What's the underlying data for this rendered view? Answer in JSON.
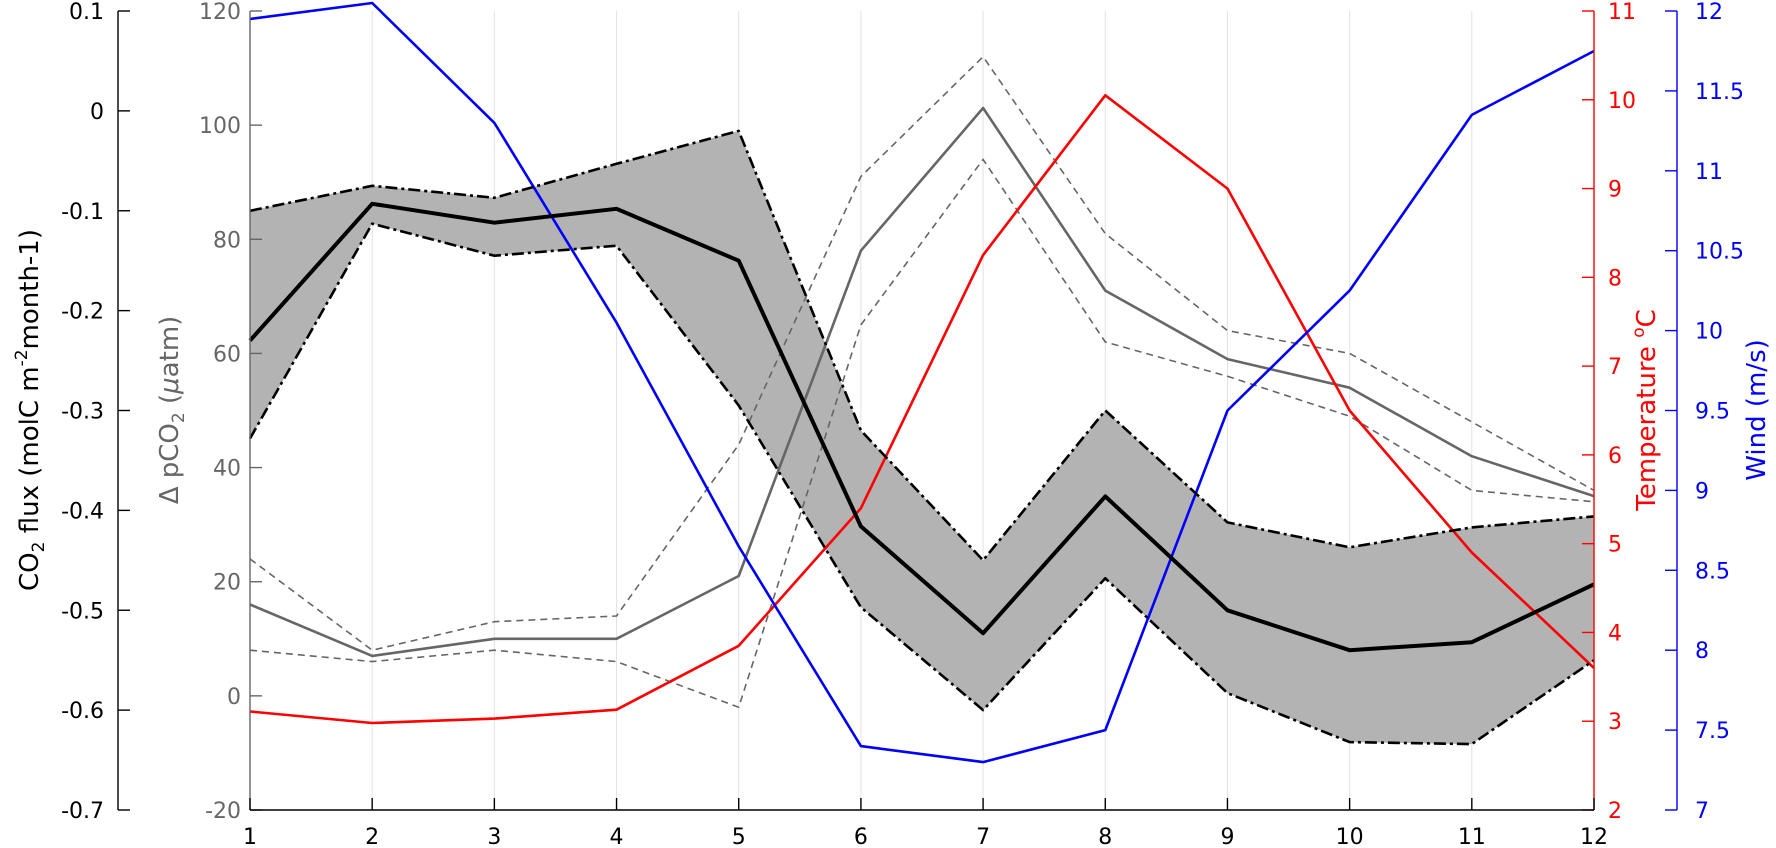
{
  "chart_data": {
    "type": "line",
    "x": [
      1,
      2,
      3,
      4,
      5,
      6,
      7,
      8,
      9,
      10,
      11,
      12
    ],
    "xlim": [
      1,
      12
    ],
    "axes": {
      "flux": {
        "label_parts": [
          "CO",
          "2",
          " flux (molC m",
          "-2",
          "month-1)"
        ],
        "ylim": [
          -0.7,
          0.1
        ],
        "ticks": [
          -0.7,
          -0.6,
          -0.5,
          -0.4,
          -0.3,
          -0.2,
          -0.1,
          0,
          0.1
        ],
        "tick_labels": [
          "-0.7",
          "-0.6",
          "-0.5",
          "-0.4",
          "-0.3",
          "-0.2",
          "-0.1",
          "0",
          "0.1"
        ],
        "color": "#000000"
      },
      "dpco2": {
        "label_parts": [
          "Δ pCO",
          "2",
          " (",
          "μ",
          "atm)"
        ],
        "ylim": [
          -20,
          120
        ],
        "ticks": [
          -20,
          0,
          20,
          40,
          60,
          80,
          100,
          120
        ],
        "tick_labels": [
          "-20",
          "0",
          "20",
          "40",
          "60",
          "80",
          "100",
          "120"
        ],
        "color": "#666666"
      },
      "temperature": {
        "label_parts": [
          "Temperature ",
          "o",
          "C"
        ],
        "ylim": [
          2,
          11
        ],
        "ticks": [
          2,
          3,
          4,
          5,
          6,
          7,
          8,
          9,
          10,
          11
        ],
        "tick_labels": [
          "2",
          "3",
          "4",
          "5",
          "6",
          "7",
          "8",
          "9",
          "10",
          "11"
        ],
        "color": "#ff0000"
      },
      "wind": {
        "label": "Wind (m/s)",
        "ylim": [
          7,
          12
        ],
        "ticks": [
          7,
          7.5,
          8,
          8.5,
          9,
          9.5,
          10,
          10.5,
          11,
          11.5,
          12
        ],
        "tick_labels": [
          "7",
          "7.5",
          "8",
          "8.5",
          "9",
          "9.5",
          "10",
          "10.5",
          "11",
          "11.5",
          "12"
        ],
        "color": "#0000ff"
      }
    },
    "flux_band": {
      "upper": [
        -0.1,
        -0.075,
        -0.087,
        -0.053,
        -0.02,
        -0.32,
        -0.45,
        -0.3,
        -0.412,
        -0.437,
        -0.417,
        -0.406
      ],
      "lower": [
        -0.328,
        -0.113,
        -0.145,
        -0.135,
        -0.295,
        -0.497,
        -0.6,
        -0.468,
        -0.583,
        -0.632,
        -0.634,
        -0.55
      ],
      "fill": "#b3b3b3"
    },
    "flux_mean": [
      -0.23,
      -0.093,
      -0.112,
      -0.098,
      -0.15,
      -0.416,
      -0.523,
      -0.386,
      -0.5,
      -0.54,
      -0.532,
      -0.474
    ],
    "dpco2_mean": [
      16,
      7,
      10,
      10,
      21,
      78,
      103,
      71,
      59,
      54,
      42,
      35
    ],
    "dpco2_upper": [
      24,
      8,
      13,
      14,
      44,
      91,
      112,
      81,
      64,
      60,
      48,
      36
    ],
    "dpco2_lower": [
      8,
      6,
      8,
      6,
      -2,
      65,
      94,
      62,
      56,
      49,
      36,
      34
    ],
    "temperature": [
      3.11,
      2.98,
      3.03,
      3.13,
      3.85,
      5.4,
      8.25,
      10.05,
      9.0,
      6.5,
      4.9,
      3.6
    ],
    "wind": [
      11.95,
      12.05,
      11.3,
      10.05,
      8.65,
      7.4,
      7.3,
      7.5,
      9.5,
      10.25,
      11.35,
      11.75
    ],
    "grid": "vertical"
  }
}
